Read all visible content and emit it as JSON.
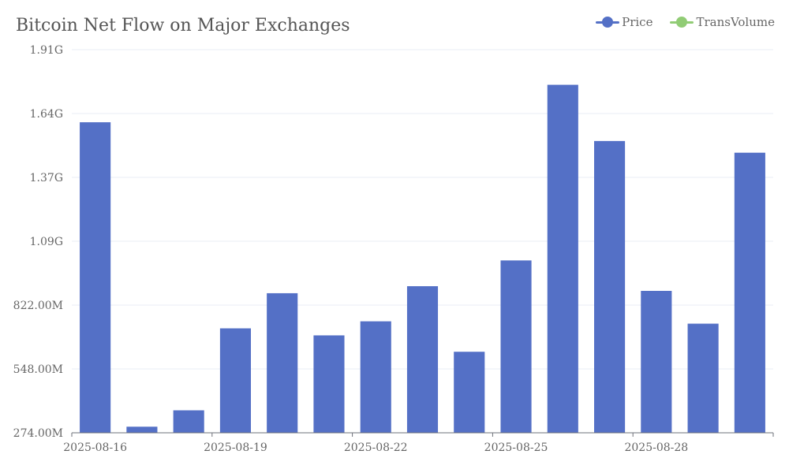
{
  "chart_data": {
    "type": "bar",
    "title": "Bitcoin Net Flow on Major Exchanges",
    "categories": [
      "2025-08-16",
      "2025-08-17",
      "2025-08-18",
      "2025-08-19",
      "2025-08-20",
      "2025-08-21",
      "2025-08-22",
      "2025-08-23",
      "2025-08-24",
      "2025-08-25",
      "2025-08-26",
      "2025-08-27",
      "2025-08-28",
      "2025-08-29",
      "2025-08-30"
    ],
    "x_tick_labels": [
      "2025-08-16",
      "2025-08-19",
      "2025-08-22",
      "2025-08-25",
      "2025-08-28"
    ],
    "series": [
      {
        "name": "Price",
        "color": "#5470c6",
        "values": [
          1600000000,
          300000000,
          370000000,
          720000000,
          870000000,
          690000000,
          750000000,
          900000000,
          620000000,
          1010000000,
          1760000000,
          1520000000,
          880000000,
          740000000,
          1470000000
        ]
      }
    ],
    "legend": [
      {
        "name": "Price",
        "color": "#5470c6"
      },
      {
        "name": "TransVolume",
        "color": "#91cc75"
      }
    ],
    "y_tick_labels": [
      "274.00M",
      "548.00M",
      "822.00M",
      "1.09G",
      "1.37G",
      "1.64G",
      "1.91G"
    ],
    "ylim": [
      274000000,
      1910000000
    ],
    "xlabel": "",
    "ylabel": "",
    "grid": true,
    "legend_position": "top-right"
  }
}
